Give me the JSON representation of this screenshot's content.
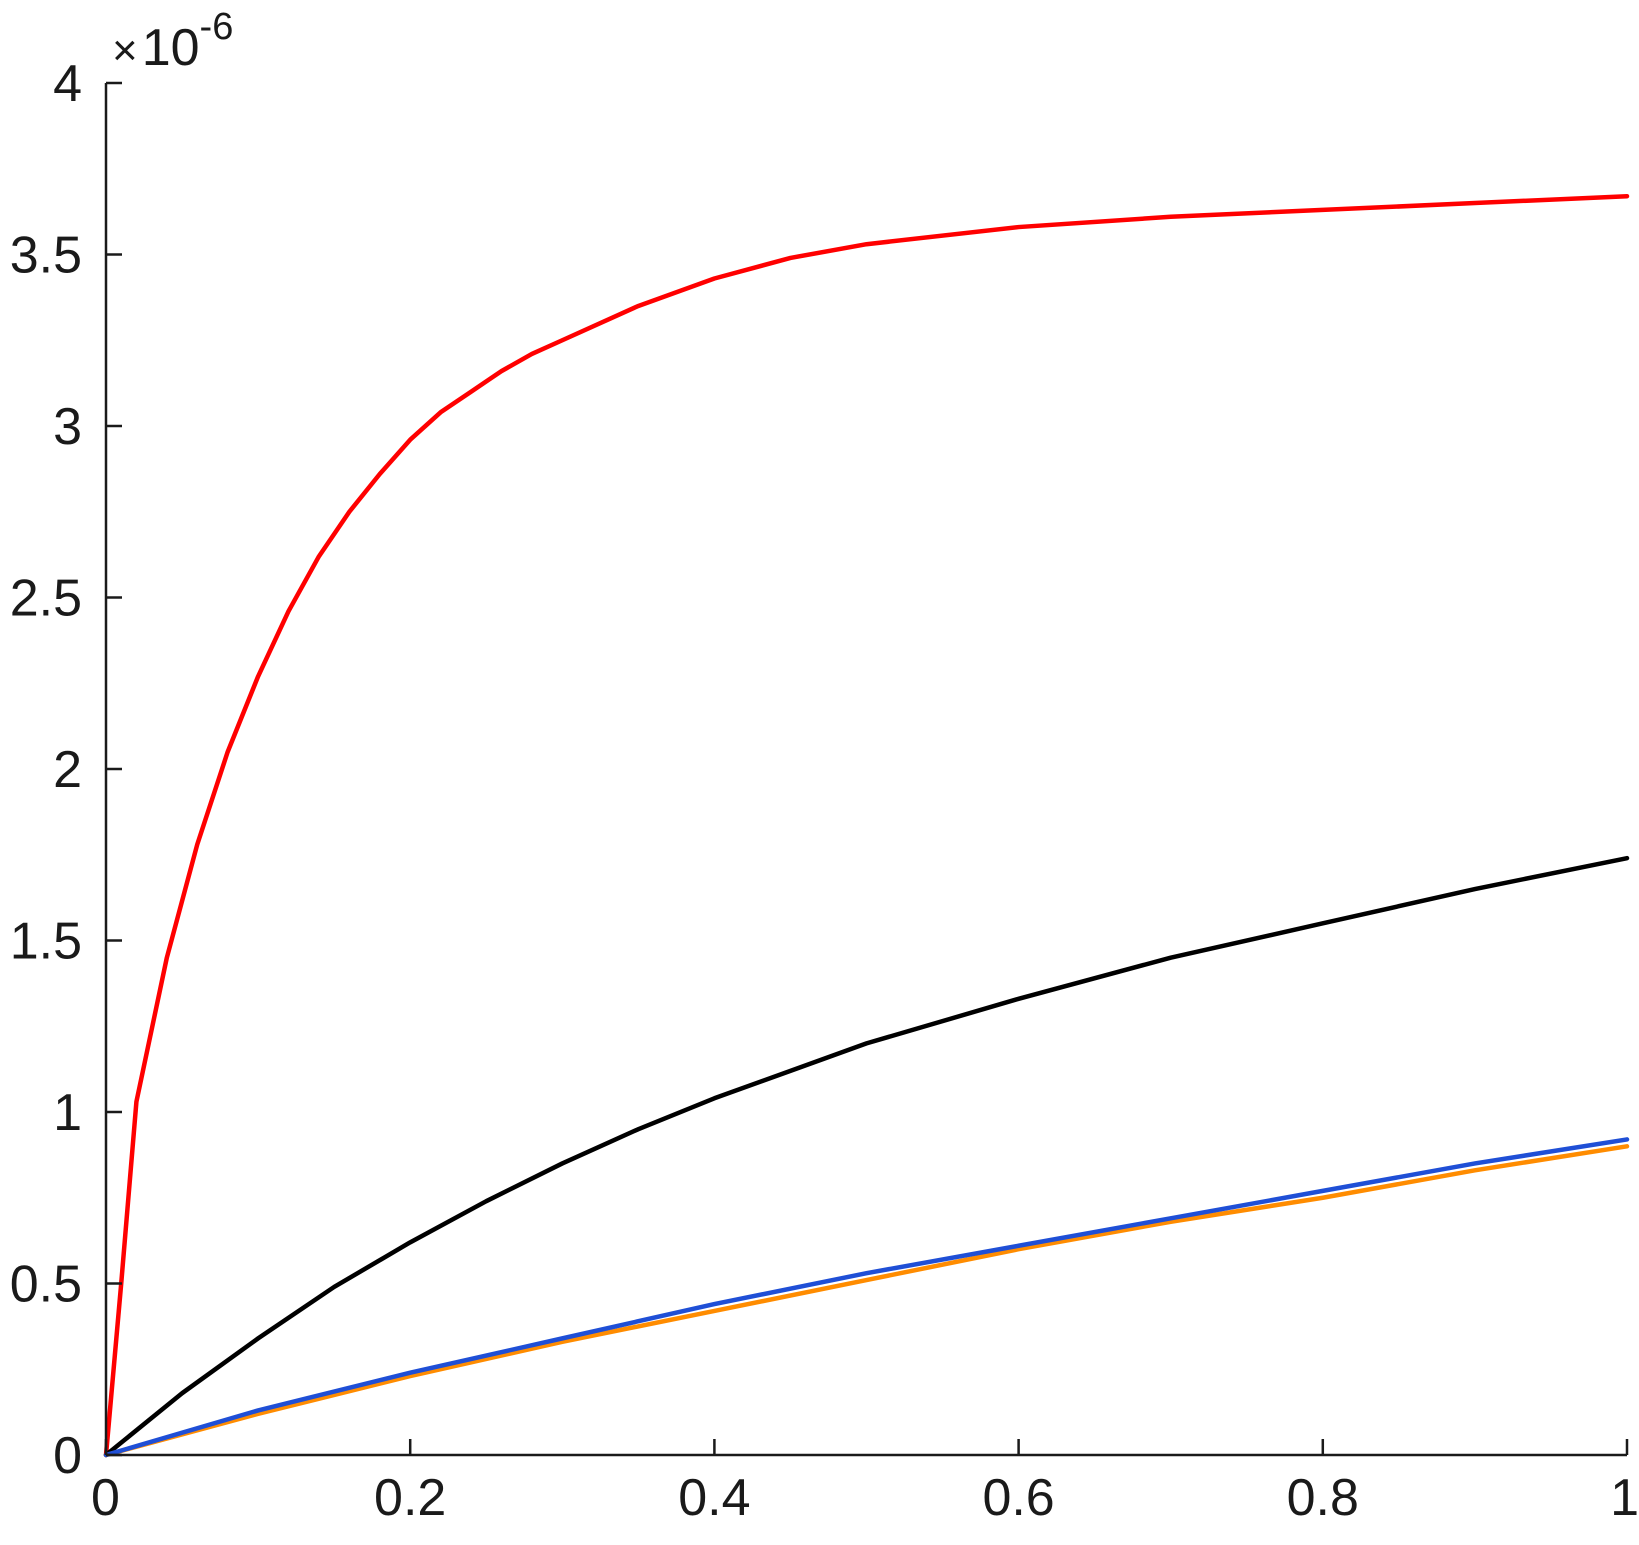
{
  "chart_data": {
    "type": "line",
    "title": "",
    "xlabel": "",
    "ylabel": "",
    "xlim": [
      0,
      1
    ],
    "ylim": [
      0,
      4e-06
    ],
    "xticks": [
      0,
      0.2,
      0.4,
      0.6,
      0.8,
      1
    ],
    "xtick_labels": [
      "0",
      "0.2",
      "0.4",
      "0.6",
      "0.8",
      "1"
    ],
    "yticks": [
      0,
      5e-07,
      1e-06,
      1.5e-06,
      2e-06,
      2.5e-06,
      3e-06,
      3.5e-06,
      4e-06
    ],
    "ytick_labels": [
      "0",
      "0.5",
      "1",
      "1.5",
      "2",
      "2.5",
      "3",
      "3.5",
      "4"
    ],
    "y_exponent": {
      "base": "10",
      "power": "-6",
      "symbol": "×"
    },
    "grid": false,
    "legend": "none",
    "series": [
      {
        "color": "#ff0000",
        "x": [
          0,
          0.01,
          0.02,
          0.04,
          0.06,
          0.08,
          0.1,
          0.12,
          0.14,
          0.16,
          0.18,
          0.2,
          0.22,
          0.24,
          0.26,
          0.28,
          0.3,
          0.35,
          0.4,
          0.45,
          0.5,
          0.6,
          0.7,
          0.8,
          0.9,
          1.0
        ],
        "y": [
          0,
          5e-07,
          1.03e-06,
          1.45e-06,
          1.78e-06,
          2.05e-06,
          2.27e-06,
          2.46e-06,
          2.62e-06,
          2.75e-06,
          2.86e-06,
          2.96e-06,
          3.04e-06,
          3.1e-06,
          3.16e-06,
          3.21e-06,
          3.25e-06,
          3.35e-06,
          3.43e-06,
          3.49e-06,
          3.53e-06,
          3.58e-06,
          3.61e-06,
          3.63e-06,
          3.65e-06,
          3.67e-06
        ]
      },
      {
        "color": "#000000",
        "x": [
          0,
          0.05,
          0.1,
          0.15,
          0.2,
          0.25,
          0.3,
          0.35,
          0.4,
          0.45,
          0.5,
          0.6,
          0.7,
          0.8,
          0.9,
          1.0
        ],
        "y": [
          0,
          1.8e-07,
          3.4e-07,
          4.9e-07,
          6.2e-07,
          7.4e-07,
          8.5e-07,
          9.5e-07,
          1.04e-06,
          1.12e-06,
          1.2e-06,
          1.33e-06,
          1.45e-06,
          1.55e-06,
          1.65e-06,
          1.74e-06
        ]
      },
      {
        "color": "#ff8c00",
        "x": [
          0,
          0.1,
          0.2,
          0.3,
          0.4,
          0.5,
          0.6,
          0.7,
          0.8,
          0.9,
          1.0
        ],
        "y": [
          0,
          1.2e-07,
          2.3e-07,
          3.3e-07,
          4.2e-07,
          5.1e-07,
          6e-07,
          6.8e-07,
          7.5e-07,
          8.3e-07,
          9e-07
        ]
      },
      {
        "color": "#1f4fd6",
        "x": [
          0,
          0.1,
          0.2,
          0.3,
          0.4,
          0.5,
          0.6,
          0.7,
          0.8,
          0.9,
          1.0
        ],
        "y": [
          0,
          1.3e-07,
          2.4e-07,
          3.4e-07,
          4.4e-07,
          5.3e-07,
          6.1e-07,
          6.9e-07,
          7.7e-07,
          8.5e-07,
          9.2e-07
        ]
      }
    ]
  }
}
